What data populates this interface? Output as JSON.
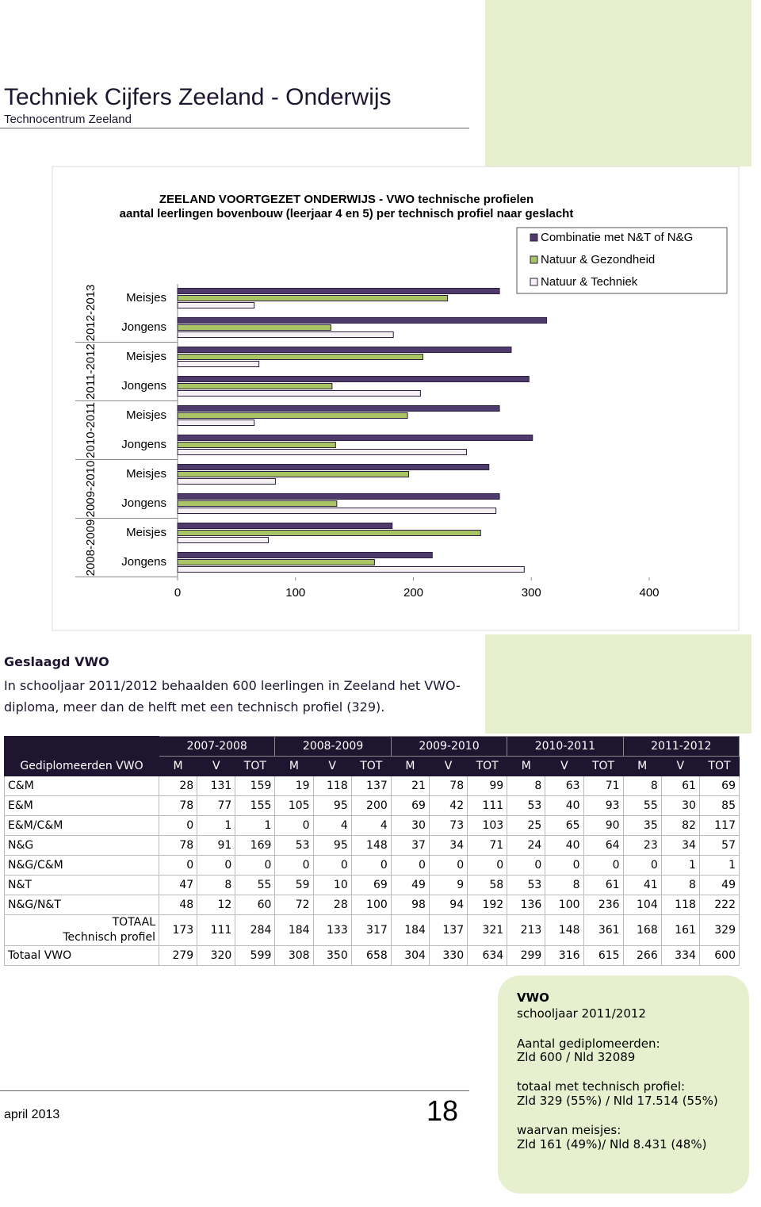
{
  "header": {
    "title": "Techniek Cijfers Zeeland - Onderwijs",
    "subtitle": "Technocentrum Zeeland"
  },
  "chart_data": {
    "type": "hbar",
    "title": "ZEELAND VOORTGEZET ONDERWIJS - VWO technische profielen",
    "subtitle": "aantal leerlingen bovenbouw (leerjaar 4 en 5) per technisch profiel naar geslacht",
    "groups": [
      "2012-2013",
      "2011-2012",
      "2010-2011",
      "2009-2010",
      "2008-2009"
    ],
    "categories": [
      "Meisjes",
      "Jongens",
      "Meisjes",
      "Jongens",
      "Meisjes",
      "Jongens",
      "Meisjes",
      "Jongens",
      "Meisjes",
      "Jongens"
    ],
    "series": [
      {
        "name": "Combinatie met N&T of N&G",
        "color": "#4f3b6b",
        "values": [
          273,
          313,
          283,
          298,
          273,
          301,
          264,
          273,
          182,
          216
        ]
      },
      {
        "name": "Natuur & Gezondheid",
        "color": "#a8c464",
        "values": [
          229,
          130,
          208,
          131,
          195,
          134,
          196,
          135,
          257,
          167
        ]
      },
      {
        "name": "Natuur & Techniek",
        "color": "#f4f0f4",
        "values": [
          65,
          183,
          69,
          206,
          65,
          245,
          83,
          270,
          77,
          294
        ]
      }
    ],
    "xlim": [
      0,
      400
    ],
    "xticks": [
      0,
      100,
      200,
      300,
      400
    ],
    "legend": "top-right"
  },
  "text": {
    "heading": "Geslaagd VWO",
    "body": "In schooljaar 2011/2012 behaalden 600 leerlingen in Zeeland het VWO-diploma, meer dan de helft met een technisch profiel (329)."
  },
  "table": {
    "years": [
      "2007-2008",
      "2008-2009",
      "2009-2010",
      "2010-2011",
      "2011-2012"
    ],
    "corner": "Gediplomeerden VWO",
    "subheaders": [
      "M",
      "V",
      "TOT",
      "M",
      "V",
      "TOT",
      "M",
      "V",
      "TOT",
      "M",
      "V",
      "TOT",
      "M",
      "V",
      "TOT"
    ],
    "rows": [
      [
        "C&M",
        28,
        131,
        159,
        19,
        118,
        137,
        21,
        78,
        99,
        8,
        63,
        71,
        8,
        61,
        69
      ],
      [
        "E&M",
        78,
        77,
        155,
        105,
        95,
        200,
        69,
        42,
        111,
        53,
        40,
        93,
        55,
        30,
        85
      ],
      [
        "E&M/C&M",
        0,
        1,
        1,
        0,
        4,
        4,
        30,
        73,
        103,
        25,
        65,
        90,
        35,
        82,
        117
      ],
      [
        "N&G",
        78,
        91,
        169,
        53,
        95,
        148,
        37,
        34,
        71,
        24,
        40,
        64,
        23,
        34,
        57
      ],
      [
        "N&G/C&M",
        0,
        0,
        0,
        0,
        0,
        0,
        0,
        0,
        0,
        0,
        0,
        0,
        0,
        1,
        1
      ],
      [
        "N&T",
        47,
        8,
        55,
        59,
        10,
        69,
        49,
        9,
        58,
        53,
        8,
        61,
        41,
        8,
        49
      ],
      [
        "N&G/N&T",
        48,
        12,
        60,
        72,
        28,
        100,
        98,
        94,
        192,
        136,
        100,
        236,
        104,
        118,
        222
      ],
      [
        "TOTAAL\nTechnisch profiel",
        173,
        111,
        284,
        184,
        133,
        317,
        184,
        137,
        321,
        213,
        148,
        361,
        168,
        161,
        329
      ],
      [
        "Totaal VWO",
        279,
        320,
        599,
        308,
        350,
        658,
        304,
        330,
        634,
        299,
        316,
        615,
        266,
        334,
        600
      ]
    ]
  },
  "sidebar": {
    "title": "VWO",
    "lines": [
      "schooljaar 2011/2012",
      "Aantal gediplomeerden:",
      "Zld 600 / Nld 32089",
      "totaal met technisch profiel:",
      "Zld 329 (55%) / Nld 17.514 (55%)",
      "waarvan meisjes:",
      "Zld 161 (49%)/ Nld 8.431 (48%)"
    ]
  },
  "footer": {
    "date": "april 2013",
    "page": "18"
  }
}
